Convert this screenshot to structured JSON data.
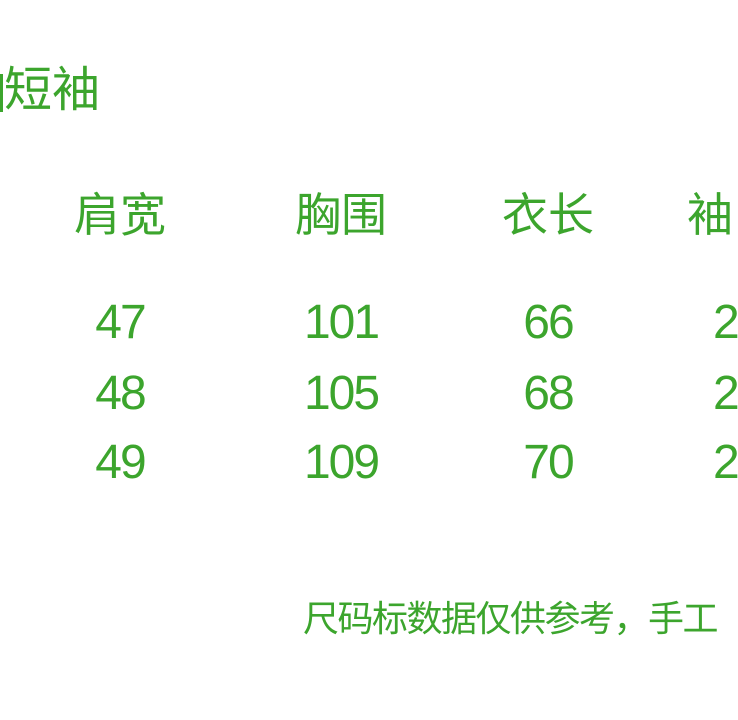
{
  "meta": {
    "background_color": "#ffffff",
    "text_color": "#3CA52D"
  },
  "title": {
    "text": "短袖",
    "left_edge_cut_off": true
  },
  "size_table": {
    "columns": [
      "肩宽",
      "胸围",
      "衣长",
      "袖"
    ],
    "column_4_truncated_at_right_edge": true,
    "rows": [
      {
        "cells": [
          "47",
          "101",
          "66",
          "2"
        ]
      },
      {
        "cells": [
          "48",
          "105",
          "68",
          "2"
        ]
      },
      {
        "cells": [
          "49",
          "109",
          "70",
          "2"
        ]
      }
    ],
    "sleeve_values_partially_visible": true
  },
  "footnote": {
    "text": "尺码标数据仅供参考，手工",
    "truncated_at_right_edge": true
  },
  "chart_data": {
    "type": "table",
    "title": "短袖",
    "columns": [
      "肩宽",
      "胸围",
      "衣长",
      "袖 (header cut off at right edge)"
    ],
    "rows": [
      [
        "47",
        "101",
        "66",
        "2 (partially visible, clipped)"
      ],
      [
        "48",
        "105",
        "68",
        "2 (partially visible, clipped)"
      ],
      [
        "49",
        "109",
        "70",
        "2 (partially visible, clipped)"
      ]
    ],
    "note": "尺码标数据仅供参考，手工 (sentence continues past right image edge)",
    "layout": "borderless table, green text on white, columns centered at x≈120/341/548, fourth column clipped"
  }
}
